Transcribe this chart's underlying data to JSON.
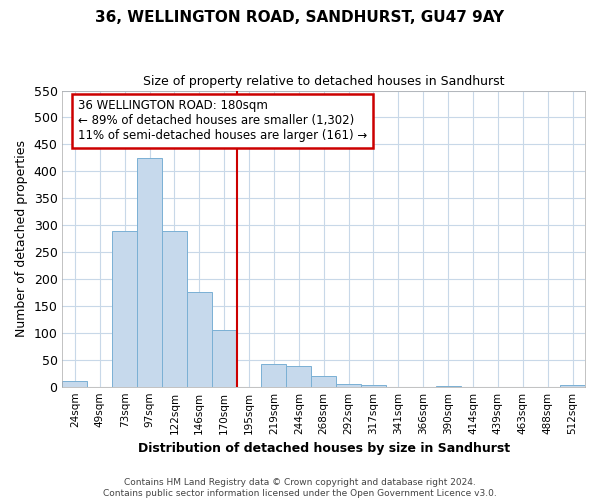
{
  "title": "36, WELLINGTON ROAD, SANDHURST, GU47 9AY",
  "subtitle": "Size of property relative to detached houses in Sandhurst",
  "xlabel": "Distribution of detached houses by size in Sandhurst",
  "ylabel": "Number of detached properties",
  "categories": [
    "24sqm",
    "49sqm",
    "73sqm",
    "97sqm",
    "122sqm",
    "146sqm",
    "170sqm",
    "195sqm",
    "219sqm",
    "244sqm",
    "268sqm",
    "292sqm",
    "317sqm",
    "341sqm",
    "366sqm",
    "390sqm",
    "414sqm",
    "439sqm",
    "463sqm",
    "488sqm",
    "512sqm"
  ],
  "values": [
    10,
    0,
    290,
    425,
    290,
    175,
    105,
    0,
    43,
    38,
    20,
    5,
    3,
    0,
    0,
    2,
    0,
    0,
    0,
    0,
    3
  ],
  "bar_color": "#c6d9ec",
  "bar_edge_color": "#7ab0d4",
  "vline_x_index": 7,
  "vline_color": "#cc0000",
  "annotation_title": "36 WELLINGTON ROAD: 180sqm",
  "annotation_line1": "← 89% of detached houses are smaller (1,302)",
  "annotation_line2": "11% of semi-detached houses are larger (161) →",
  "ylim": [
    0,
    550
  ],
  "yticks": [
    0,
    50,
    100,
    150,
    200,
    250,
    300,
    350,
    400,
    450,
    500,
    550
  ],
  "footer1": "Contains HM Land Registry data © Crown copyright and database right 2024.",
  "footer2": "Contains public sector information licensed under the Open Government Licence v3.0.",
  "bg_color": "#ffffff",
  "plot_bg_color": "#ffffff",
  "grid_color": "#c8d8e8"
}
